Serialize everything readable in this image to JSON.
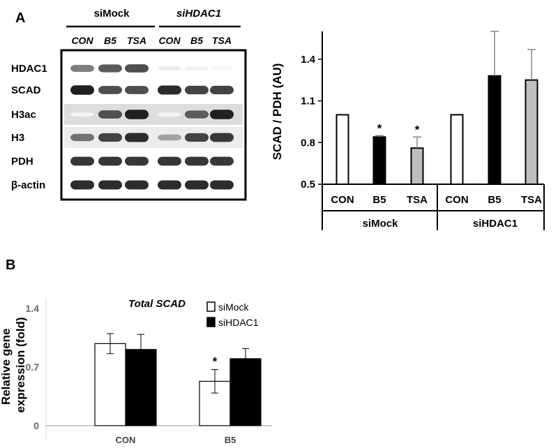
{
  "panels": {
    "a_label": "A",
    "b_label": "B"
  },
  "blot": {
    "groups": [
      "siMock",
      "siHDAC1"
    ],
    "lane_labels": [
      "CON",
      "B5",
      "TSA",
      "CON",
      "B5",
      "TSA"
    ],
    "rows": [
      {
        "name": "HDAC1",
        "intensity": [
          0.55,
          0.7,
          0.75,
          0.08,
          0.06,
          0.04
        ],
        "background": 0.0
      },
      {
        "name": "SCAD",
        "intensity": [
          0.95,
          0.75,
          0.75,
          0.9,
          0.8,
          0.8
        ],
        "background": 0.0
      },
      {
        "name": "H3ac",
        "intensity": [
          0.05,
          0.75,
          0.95,
          0.05,
          0.7,
          0.95
        ],
        "background": 0.22
      },
      {
        "name": "H3",
        "intensity": [
          0.6,
          0.8,
          0.9,
          0.4,
          0.8,
          0.85
        ],
        "background": 0.12
      },
      {
        "name": "PDH",
        "intensity": [
          0.85,
          0.85,
          0.85,
          0.85,
          0.85,
          0.85
        ],
        "background": 0.0
      },
      {
        "name": "β-actin",
        "intensity": [
          0.9,
          0.9,
          0.9,
          0.9,
          0.9,
          0.9
        ],
        "background": 0.0
      }
    ]
  },
  "chart_data": [
    {
      "type": "bar",
      "panel": "A",
      "ylabel": "SCAD / PDH (AU)",
      "ylim": [
        0.5,
        1.6
      ],
      "yticks": [
        "0.5",
        "0.8",
        "1.1",
        "1.4"
      ],
      "categories": [
        "CON",
        "B5",
        "TSA",
        "CON",
        "B5",
        "TSA"
      ],
      "groups": [
        "siMock",
        "siHDAC1"
      ],
      "values": [
        1.0,
        0.84,
        0.76,
        1.0,
        1.28,
        1.25
      ],
      "errors": [
        0.0,
        0.01,
        0.08,
        0.0,
        0.32,
        0.22
      ],
      "fills": [
        "#ffffff",
        "#000000",
        "#bfbfbf",
        "#ffffff",
        "#000000",
        "#bfbfbf"
      ],
      "significance": [
        "",
        "*",
        "*",
        "",
        "",
        ""
      ]
    },
    {
      "type": "bar",
      "panel": "B",
      "title": "Total SCAD",
      "ylabel": [
        "Relative gene",
        "expression (fold)"
      ],
      "ylim": [
        0,
        1.4
      ],
      "yticks": [
        "0",
        "0.7",
        "1.4"
      ],
      "categories": [
        "CON",
        "B5"
      ],
      "series": [
        {
          "name": "siMock",
          "values": [
            0.98,
            0.53
          ],
          "errors": [
            0.12,
            0.14
          ],
          "significance": [
            "",
            "*"
          ],
          "color": "#ffffff"
        },
        {
          "name": "siHDAC1",
          "values": [
            0.91,
            0.8
          ],
          "errors": [
            0.18,
            0.12
          ],
          "significance": [
            "",
            ""
          ],
          "color": "#000000"
        }
      ]
    }
  ]
}
